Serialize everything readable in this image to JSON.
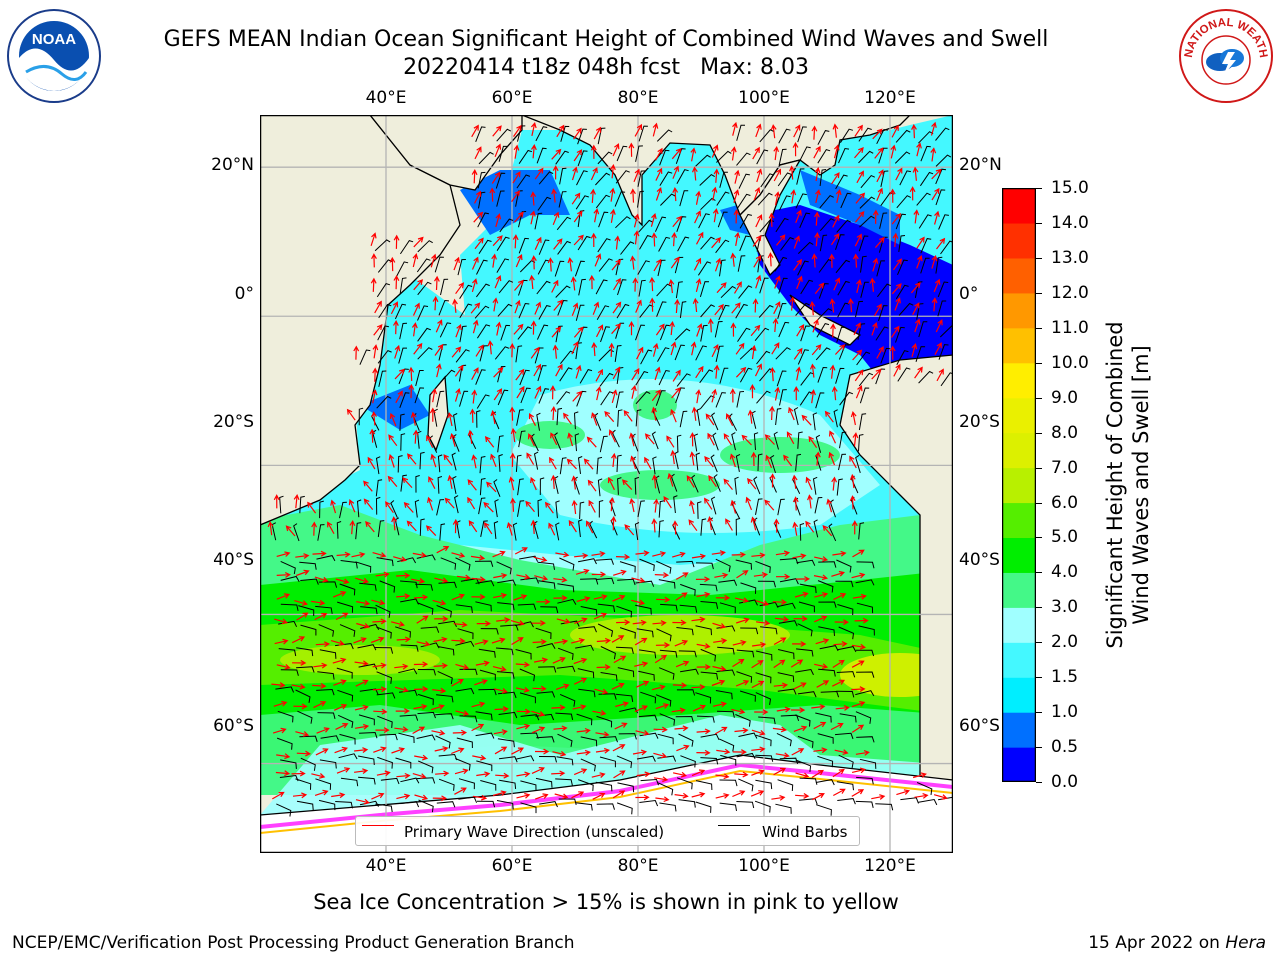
{
  "header": {
    "title": "GEFS MEAN Indian Ocean Significant Height of Combined Wind Waves and Swell",
    "subtitle_run": "20220414 t18z 048h fcst",
    "subtitle_max": "Max: 8.03"
  },
  "logos": {
    "left": {
      "label": "NOAA",
      "icon": "noaa-logo"
    },
    "right": {
      "label": "NATIONAL WEATHER SERVICE",
      "icon": "nws-logo"
    }
  },
  "map": {
    "lon_range": [
      20,
      130
    ],
    "lat_range": [
      -72,
      27
    ],
    "lon_ticks": [
      "40°E",
      "60°E",
      "80°E",
      "100°E",
      "120°E"
    ],
    "lat_ticks": [
      "20°N",
      "0°",
      "20°S",
      "40°S",
      "60°S"
    ],
    "grid": true,
    "colors": {
      "land": "#efeedc",
      "ice": "#ffffff",
      "grid": "#b4b4b4",
      "arrow": "#ff0000",
      "barb": "#000000"
    }
  },
  "legend": {
    "items": [
      {
        "label": "Primary Wave Direction (unscaled)",
        "color": "#ff0000"
      },
      {
        "label": "Wind Barbs",
        "color": "#000000"
      }
    ],
    "placement": "bottom-center"
  },
  "colorbar": {
    "title_line1": "Significant Height of Combined",
    "title_line2": "Wind Waves and Swell [m]",
    "levels": [
      "0.0",
      "0.5",
      "1.0",
      "1.5",
      "2.0",
      "3.0",
      "4.0",
      "5.0",
      "6.0",
      "7.0",
      "8.0",
      "9.0",
      "10.0",
      "11.0",
      "12.0",
      "13.0",
      "14.0",
      "15.0"
    ],
    "colors": [
      "#0000ff",
      "#0070ff",
      "#00eeff",
      "#44f8ff",
      "#a0ffff",
      "#44f888",
      "#00ee00",
      "#55ee00",
      "#b8f000",
      "#dcf000",
      "#eaf000",
      "#ffee00",
      "#ffc000",
      "#ff9800",
      "#ff6000",
      "#ff3000",
      "#ff0000"
    ]
  },
  "footer": {
    "note": "Sea Ice Concentration > 15% is shown in pink to yellow",
    "credit": "NCEP/EMC/Verification Post Processing Product Generation Branch",
    "date": "15 Apr 2022 on",
    "host": "Hera"
  }
}
